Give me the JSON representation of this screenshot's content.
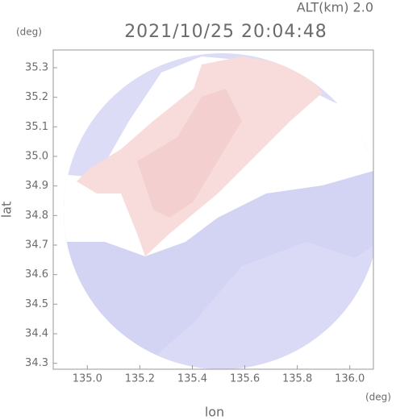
{
  "chart_data": {
    "type": "heatmap",
    "title": "2021/10/25 20:04:48",
    "subtitle": "ALT(km) 2.0",
    "x_label": "lon",
    "y_label": "lat",
    "x_unit": "(deg)",
    "y_unit": "(deg)",
    "xlim": [
      134.87,
      136.09
    ],
    "ylim": [
      34.28,
      35.36
    ],
    "xticks": [
      {
        "value": 135,
        "label": "135.0"
      },
      135.2,
      135.4,
      135.6,
      135.8,
      {
        "value": 136,
        "label": "136.0"
      }
    ],
    "yticks": [
      34.3,
      34.4,
      34.5,
      34.6,
      34.7,
      34.8,
      34.9,
      {
        "value": 35,
        "label": "35.0"
      },
      35.1,
      35.2,
      35.3
    ]
  }
}
